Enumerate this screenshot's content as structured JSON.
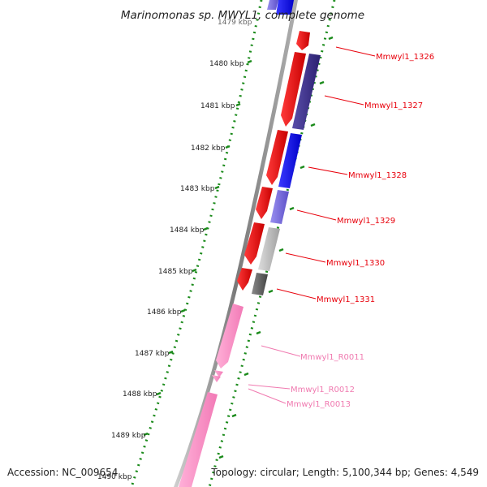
{
  "title": "Marinomonas sp. MWYL1, complete genome",
  "ticks": [
    {
      "label": "1479 kbp"
    },
    {
      "label": "1480 kbp"
    },
    {
      "label": "1481 kbp"
    },
    {
      "label": "1482 kbp"
    },
    {
      "label": "1483 kbp"
    },
    {
      "label": "1484 kbp"
    },
    {
      "label": "1485 kbp"
    },
    {
      "label": "1486 kbp"
    },
    {
      "label": "1487 kbp"
    },
    {
      "label": "1488 kbp"
    },
    {
      "label": "1489 kbp"
    },
    {
      "label": "1490 kbp"
    }
  ],
  "genes": [
    {
      "label": "Mmwyl1_1326",
      "color": "#e8000b"
    },
    {
      "label": "Mmwyl1_1327",
      "color": "#e8000b"
    },
    {
      "label": "Mmwyl1_1328",
      "color": "#e8000b"
    },
    {
      "label": "Mmwyl1_1329",
      "color": "#e8000b"
    },
    {
      "label": "Mmwyl1_1330",
      "color": "#e8000b"
    },
    {
      "label": "Mmwyl1_1331",
      "color": "#e8000b"
    },
    {
      "label": "Mmwyl1_R0011",
      "color": "#f07ab0"
    },
    {
      "label": "Mmwyl1_R0012",
      "color": "#f07ab0"
    },
    {
      "label": "Mmwyl1_R0013",
      "color": "#f07ab0"
    }
  ],
  "colors": {
    "cds": "#ff0000",
    "rna": "#ff8fc8",
    "cog_blue": "#0000ff",
    "cog_indigo": "#3a2d86",
    "cog_periwinkle": "#7a6ee0",
    "cog_gray": "#bcbcbc",
    "cog_darkgray": "#666666",
    "backbone": "#8c8c8c",
    "tick": "#1a8a1a"
  },
  "footer": {
    "accession": "Accession: NC_009654",
    "topology": "Topology: circular; Length: 5,100,344 bp; Genes: 4,549"
  }
}
